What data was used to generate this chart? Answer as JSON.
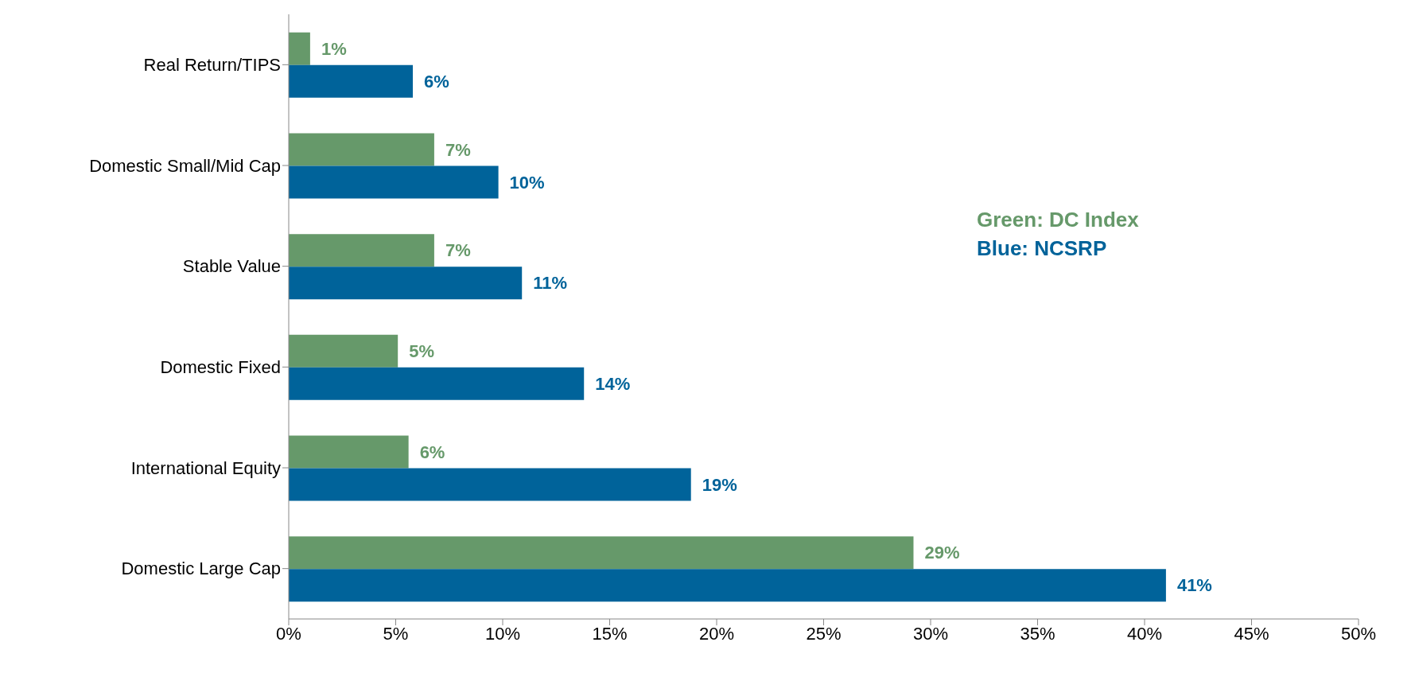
{
  "chart_data": {
    "type": "bar",
    "orientation": "horizontal",
    "categories": [
      "Real Return/TIPS",
      "Domestic Small/Mid Cap",
      "Stable Value",
      "Domestic Fixed",
      "International Equity",
      "Domestic Large Cap"
    ],
    "series": [
      {
        "name": "Green: DC Index",
        "color": "#66996a",
        "values": [
          1.0,
          6.8,
          6.8,
          5.1,
          5.6,
          29.2
        ],
        "value_labels": [
          "1%",
          "7%",
          "7%",
          "5%",
          "6%",
          "29%"
        ]
      },
      {
        "name": "Blue: NCSRP",
        "color": "#00639a",
        "values": [
          5.8,
          9.8,
          10.9,
          13.8,
          18.8,
          41.0
        ],
        "value_labels": [
          "6%",
          "10%",
          "11%",
          "14%",
          "19%",
          "41%"
        ]
      }
    ],
    "xlim": [
      0,
      50
    ],
    "xticks": [
      {
        "value": 0,
        "label": "0%"
      },
      {
        "value": 5,
        "label": "5%"
      },
      {
        "value": 10,
        "label": "10%"
      },
      {
        "value": 15,
        "label": "15%"
      },
      {
        "value": 20,
        "label": "20%"
      },
      {
        "value": 25,
        "label": "25%"
      },
      {
        "value": 30,
        "label": "30%"
      },
      {
        "value": 35,
        "label": "35%"
      },
      {
        "value": 40,
        "label": "40%"
      },
      {
        "value": 45,
        "label": "45%"
      },
      {
        "value": 50,
        "label": "50%"
      }
    ],
    "grid": false,
    "legend": "right"
  }
}
